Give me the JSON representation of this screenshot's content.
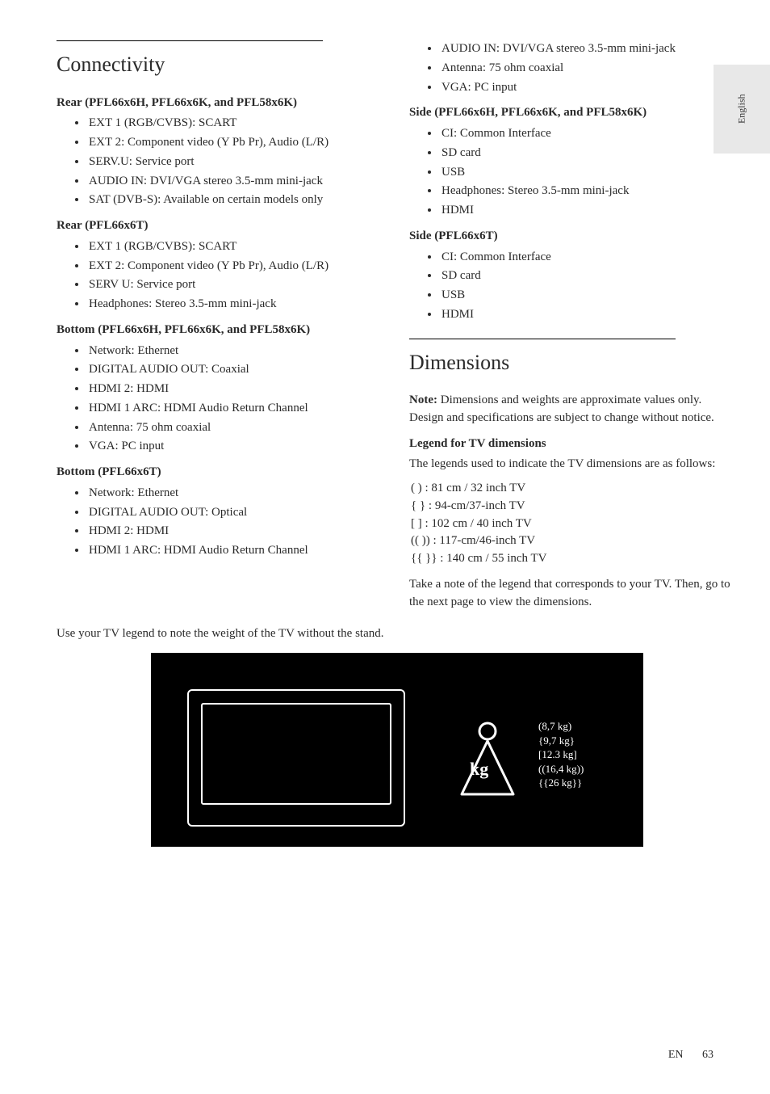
{
  "sideTab": "English",
  "leftCol": {
    "heading": "Connectivity",
    "sections": [
      {
        "title": "Rear (PFL66x6H, PFL66x6K, and PFL58x6K)",
        "items": [
          "EXT 1 (RGB/CVBS): SCART",
          "EXT 2: Component video (Y Pb Pr), Audio (L/R)",
          "SERV.U: Service port",
          "AUDIO IN: DVI/VGA stereo 3.5-mm mini-jack",
          "SAT (DVB-S): Available on certain models only"
        ]
      },
      {
        "title": "Rear (PFL66x6T)",
        "items": [
          "EXT 1 (RGB/CVBS): SCART",
          "EXT 2: Component video (Y Pb Pr), Audio (L/R)",
          "SERV U: Service port",
          "Headphones: Stereo 3.5-mm mini-jack"
        ]
      },
      {
        "title": "Bottom (PFL66x6H, PFL66x6K, and PFL58x6K)",
        "items": [
          "Network: Ethernet",
          "DIGITAL AUDIO OUT: Coaxial",
          "HDMI 2: HDMI",
          "HDMI 1 ARC: HDMI Audio Return Channel",
          "Antenna: 75 ohm coaxial",
          "VGA: PC input"
        ]
      },
      {
        "title": "Bottom (PFL66x6T)",
        "items": [
          "Network: Ethernet",
          "DIGITAL AUDIO OUT: Optical",
          "HDMI 2: HDMI",
          "HDMI 1 ARC: HDMI Audio Return Channel"
        ]
      }
    ]
  },
  "rightCol": {
    "topItems": [
      "AUDIO IN: DVI/VGA stereo 3.5-mm mini-jack",
      "Antenna: 75 ohm coaxial",
      "VGA: PC input"
    ],
    "sections": [
      {
        "title": "Side (PFL66x6H, PFL66x6K, and PFL58x6K)",
        "items": [
          "CI: Common Interface",
          "SD card",
          "USB",
          "Headphones: Stereo 3.5-mm mini-jack",
          "HDMI"
        ]
      },
      {
        "title": "Side (PFL66x6T)",
        "items": [
          "CI: Common Interface",
          "SD card",
          "USB",
          "HDMI"
        ]
      }
    ],
    "heading2": "Dimensions",
    "noteLabel": "Note:",
    "noteText": " Dimensions and weights are approximate values only. Design and specifications are subject to change without notice.",
    "legendTitle": "Legend for TV dimensions",
    "legendIntro": "The legends used to indicate the TV dimensions are as follows:",
    "legendItems": [
      "( ) : 81 cm / 32 inch TV",
      "{ } : 94-cm/37-inch TV",
      "[ ] : 102 cm / 40 inch TV",
      "(( )) : 117-cm/46-inch TV",
      "{{ }} : 140 cm / 55 inch TV"
    ],
    "legendOutro": "Take a note of the legend that corresponds to your TV. Then, go to the next page to view the dimensions."
  },
  "fullNote": "Use your TV legend to note the weight of the TV without the stand.",
  "diagram": {
    "kgLabel": "kg",
    "weights": [
      "(8,7 kg)",
      "{9,7 kg}",
      "[12.3 kg]",
      "((16,4 kg))",
      "{{26 kg}}"
    ]
  },
  "footer": {
    "lang": "EN",
    "page": "63"
  }
}
